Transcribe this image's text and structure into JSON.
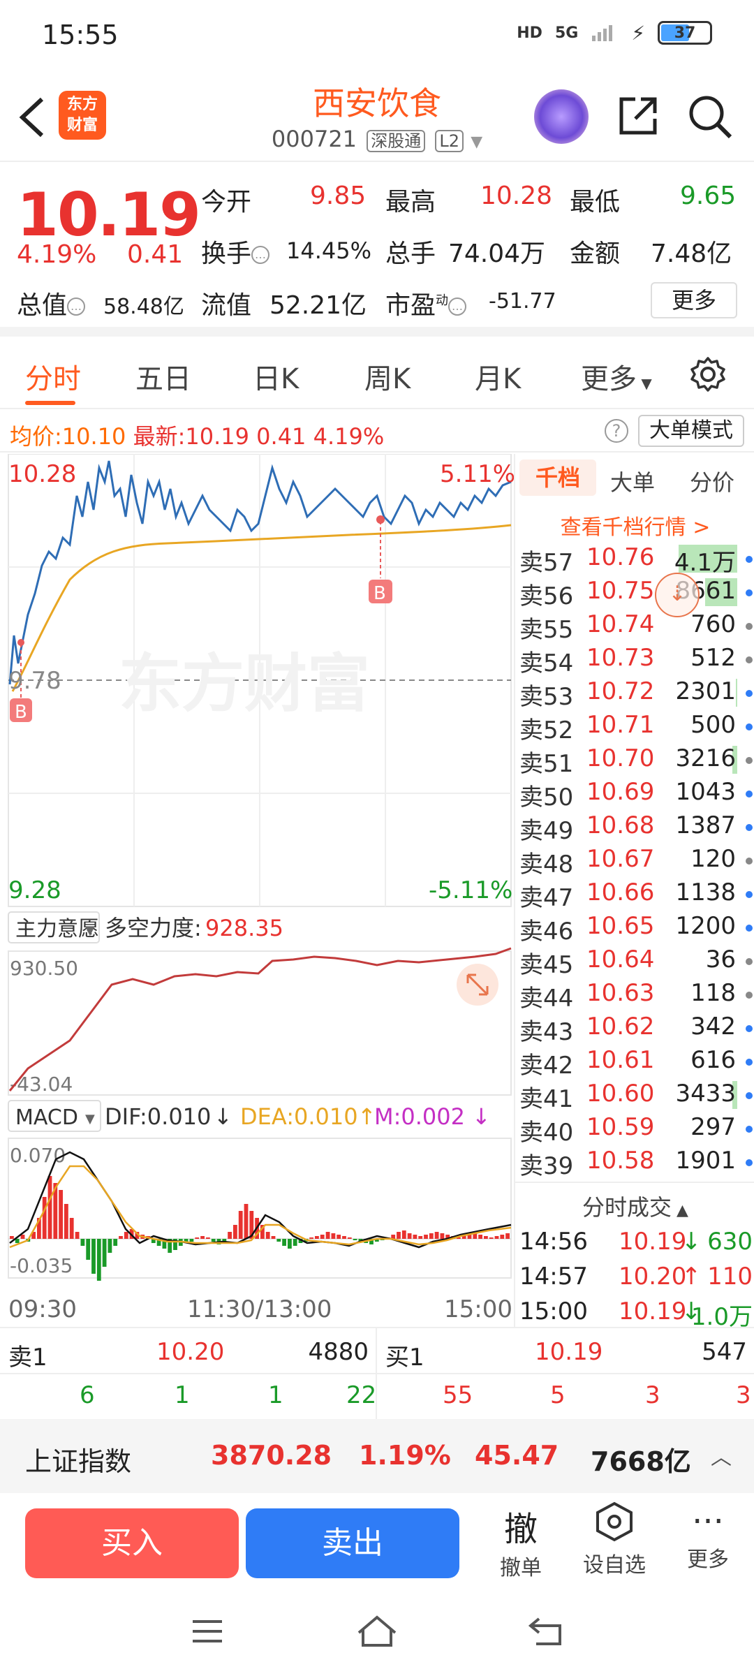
{
  "status": {
    "time": "15:55",
    "net1": "HD",
    "net2": "5G",
    "battery": "37"
  },
  "header": {
    "title": "西安饮食",
    "code": "000721",
    "tag1": "深股通",
    "tag2": "L2",
    "logo_line1": "东方",
    "logo_line2": "财富"
  },
  "quote": {
    "price": "10.19",
    "pct": "4.19%",
    "chg": "0.41",
    "open_label": "今开",
    "open": "9.85",
    "high_label": "最高",
    "high": "10.28",
    "low_label": "最低",
    "low": "9.65",
    "turn_label": "换手",
    "turn": "14.45%",
    "vol_label": "总手",
    "vol": "74.04万",
    "amt_label": "金额",
    "amt": "7.48亿",
    "mcap_label": "总值",
    "mcap": "58.48亿",
    "float_label": "流值",
    "float": "52.21亿",
    "pe_label": "市盈",
    "pe_sup": "动",
    "pe": "-51.77",
    "more": "更多"
  },
  "tabs": [
    "分时",
    "五日",
    "日K",
    "周K",
    "月K",
    "更多"
  ],
  "avgbar": {
    "avg_label": "均价:",
    "avg": "10.10",
    "last_label": "最新:",
    "last": "10.19",
    "chg": "0.41",
    "pct": "4.19%",
    "mode": "大单模式"
  },
  "chart": {
    "high": "10.28",
    "high_pct": "5.11%",
    "mid": "9.78",
    "low": "9.28",
    "low_pct": "-5.11%",
    "watermark": "东方财富",
    "b_marker": "B",
    "ind_select": "主力意愿",
    "ind_label": "多空力度:",
    "ind_value": "928.35",
    "ind_max": "930.50",
    "ind_min": "-43.04",
    "macd_select": "MACD",
    "dif": "DIF:0.010",
    "dif_arrow": "↓",
    "dea": "DEA:0.010",
    "dea_arrow": "↑",
    "m": "M:0.002",
    "m_arrow": "↓",
    "macd_max": "0.070",
    "macd_min": "-0.035",
    "time1": "09:30",
    "time2": "11:30/13:00",
    "time3": "15:00"
  },
  "book": {
    "tabs": [
      "千档",
      "大单",
      "分价"
    ],
    "link": "查看千档行情 >",
    "rows": [
      {
        "label": "卖57",
        "price": "10.76",
        "vol": "4.1万"
      },
      {
        "label": "卖56",
        "price": "10.75",
        "vol": "8661"
      },
      {
        "label": "卖55",
        "price": "10.74",
        "vol": "760"
      },
      {
        "label": "卖54",
        "price": "10.73",
        "vol": "512"
      },
      {
        "label": "卖53",
        "price": "10.72",
        "vol": "2301"
      },
      {
        "label": "卖52",
        "price": "10.71",
        "vol": "500"
      },
      {
        "label": "卖51",
        "price": "10.70",
        "vol": "3216"
      },
      {
        "label": "卖50",
        "price": "10.69",
        "vol": "1043"
      },
      {
        "label": "卖49",
        "price": "10.68",
        "vol": "1387"
      },
      {
        "label": "卖48",
        "price": "10.67",
        "vol": "120"
      },
      {
        "label": "卖47",
        "price": "10.66",
        "vol": "1138"
      },
      {
        "label": "卖46",
        "price": "10.65",
        "vol": "1200"
      },
      {
        "label": "卖45",
        "price": "10.64",
        "vol": "36"
      },
      {
        "label": "卖44",
        "price": "10.63",
        "vol": "118"
      },
      {
        "label": "卖43",
        "price": "10.62",
        "vol": "342"
      },
      {
        "label": "卖42",
        "price": "10.61",
        "vol": "616"
      },
      {
        "label": "卖41",
        "price": "10.60",
        "vol": "3433"
      },
      {
        "label": "卖40",
        "price": "10.59",
        "vol": "297"
      },
      {
        "label": "卖39",
        "price": "10.58",
        "vol": "1901"
      }
    ],
    "trade_header": "分时成交",
    "trades": [
      {
        "time": "14:56",
        "price": "10.19",
        "arrow": "↓",
        "vol": "630"
      },
      {
        "time": "14:57",
        "price": "10.20",
        "arrow": "↑",
        "vol": "110"
      },
      {
        "time": "15:00",
        "price": "10.19",
        "arrow": "↓",
        "vol": "1.0万"
      }
    ]
  },
  "quick": {
    "sell1_label": "卖1",
    "sell1_price": "10.20",
    "sell1_vol": "4880",
    "buy1_label": "买1",
    "buy1_price": "10.19",
    "buy1_vol": "547",
    "sell_counts": [
      "6",
      "1",
      "1",
      "22"
    ],
    "buy_counts": [
      "55",
      "5",
      "3",
      "3"
    ]
  },
  "index": {
    "name": "上证指数",
    "value": "3870.28",
    "pct": "1.19%",
    "chg": "45.47",
    "amt": "7668亿"
  },
  "actions": {
    "buy": "买入",
    "sell": "卖出",
    "cancel_big": "撤",
    "cancel": "撤单",
    "watch": "设自选",
    "more": "更多"
  }
}
